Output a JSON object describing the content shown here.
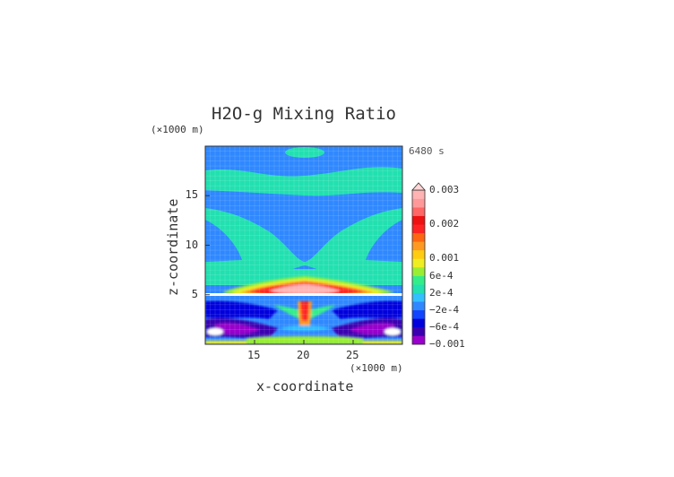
{
  "chart_data": {
    "type": "heatmap",
    "title": "H2O-g Mixing Ratio",
    "xlabel": "x-coordinate",
    "ylabel": "z-coordinate",
    "x_unit": "(×1000 m)",
    "y_unit": "(×1000 m)",
    "time_label": "6480 s",
    "xlim": [
      10,
      30
    ],
    "ylim": [
      0,
      20
    ],
    "x_ticks": [
      "15",
      "20",
      "25"
    ],
    "y_ticks": [
      "5",
      "10",
      "15"
    ],
    "grid": false,
    "colorbar": {
      "placement": "right",
      "extend_top": true,
      "tick_labels": [
        "0.003",
        "0.002",
        "0.001",
        "6e-4",
        "2e-4",
        "−2e-4",
        "−6e-4",
        "−0.001"
      ],
      "levels_low_to_high_colors": [
        "#9900cc",
        "#3a00b0",
        "#0000dd",
        "#1144ff",
        "#2f88ff",
        "#33c0ff",
        "#22e0b0",
        "#33ee88",
        "#99ee33",
        "#eeee22",
        "#ffcc11",
        "#ff9922",
        "#ff6611",
        "#ff2222",
        "#ee1111",
        "#ff6666",
        "#ff9999",
        "#ffb3b3"
      ]
    }
  }
}
